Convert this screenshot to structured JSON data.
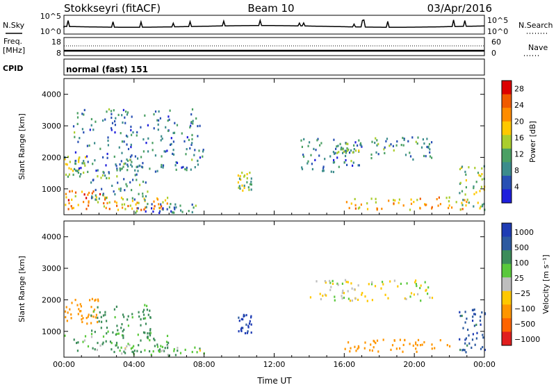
{
  "header": {
    "station": "Stokkseyri (fitACF)",
    "beam": "Beam 10",
    "date": "03/Apr/2016"
  },
  "top_strips": {
    "nsky_label": "N.Sky",
    "nsky_ticks_left": [
      "10^5",
      "10^0"
    ],
    "nsky_ticks_right": [
      "10^5",
      "10^0"
    ],
    "nsearch_label": "N.Search",
    "freq_label_line1": "Freq.",
    "freq_label_line2": "[MHz]",
    "freq_ticks": [
      "18",
      "8"
    ],
    "nave_ticks": [
      "60",
      "0"
    ],
    "nave_label": "Nave",
    "cpid_label": "CPID",
    "cpid_value": "normal (fast) 151"
  },
  "colors": {
    "power": [
      "#1e1edc",
      "#2850b4",
      "#3c8c8c",
      "#4ba064",
      "#aacd2d",
      "#ffc800",
      "#ff8c00",
      "#f05a00",
      "#dc0000"
    ],
    "velocity": [
      "#1e3cb4",
      "#2d5aa0",
      "#3c8c5a",
      "#5ac83c",
      "#bebebe",
      "#ffc800",
      "#ff9600",
      "#ff6400",
      "#e11e1e"
    ]
  },
  "chart_data": [
    {
      "type": "heatmap",
      "panel": "power",
      "xlabel": "Time UT",
      "ylabel": "Slant Range [km]",
      "x_ticks": [
        "00:00",
        "04:00",
        "08:00",
        "12:00",
        "16:00",
        "20:00",
        "00:00"
      ],
      "xlim_hours": [
        0,
        24
      ],
      "y_ticks": [
        1000,
        2000,
        3000,
        4000
      ],
      "ylim_km": [
        180,
        4500
      ],
      "colorbar_label": "Power [dB]",
      "colorbar_ticks": [
        4,
        8,
        12,
        16,
        20,
        24,
        28
      ],
      "clim": [
        0,
        30
      ],
      "regions": [
        {
          "t0": 0.0,
          "t1": 2.8,
          "r0": 300,
          "r1": 900,
          "level": 22
        },
        {
          "t0": 2.5,
          "t1": 6.0,
          "r0": 300,
          "r1": 700,
          "level": 20
        },
        {
          "t0": 0.0,
          "t1": 1.2,
          "r0": 1200,
          "r1": 2000,
          "level": 14
        },
        {
          "t0": 1.5,
          "t1": 5.0,
          "r0": 600,
          "r1": 1800,
          "level": 10
        },
        {
          "t0": 4.0,
          "t1": 7.5,
          "r0": 200,
          "r1": 500,
          "level": 8
        },
        {
          "t0": 0.5,
          "t1": 8.0,
          "r0": 1500,
          "r1": 3500,
          "level": 8
        },
        {
          "t0": 9.9,
          "t1": 10.7,
          "r0": 900,
          "r1": 1500,
          "level": 14
        },
        {
          "t0": 13.5,
          "t1": 17.0,
          "r0": 1500,
          "r1": 2600,
          "level": 8
        },
        {
          "t0": 15.5,
          "t1": 16.8,
          "r0": 2100,
          "r1": 2400,
          "level": 12
        },
        {
          "t0": 16.0,
          "t1": 23.0,
          "r0": 300,
          "r1": 700,
          "level": 20
        },
        {
          "t0": 17.5,
          "t1": 21.0,
          "r0": 1900,
          "r1": 2600,
          "level": 10
        },
        {
          "t0": 22.5,
          "t1": 24.0,
          "r0": 300,
          "r1": 1700,
          "level": 14
        }
      ]
    },
    {
      "type": "heatmap",
      "panel": "velocity",
      "xlabel": "Time UT",
      "ylabel": "Slant Range [km]",
      "x_ticks": [
        "00:00",
        "04:00",
        "08:00",
        "12:00",
        "16:00",
        "20:00",
        "00:00"
      ],
      "xlim_hours": [
        0,
        24
      ],
      "y_ticks": [
        1000,
        2000,
        3000,
        4000
      ],
      "ylim_km": [
        180,
        4500
      ],
      "colorbar_label": "Velocity [m s⁻¹]",
      "colorbar_ticks": [
        "1000",
        "500",
        "100",
        "25",
        "−25",
        "−100",
        "−500",
        "−1000"
      ],
      "clim": [
        -1000,
        1000
      ],
      "regions": [
        {
          "t0": 0.0,
          "t1": 6.0,
          "r0": 300,
          "r1": 900,
          "level": 100
        },
        {
          "t0": 0.0,
          "t1": 2.0,
          "r0": 1200,
          "r1": 2000,
          "level": -300
        },
        {
          "t0": 1.5,
          "t1": 5.0,
          "r0": 900,
          "r1": 1800,
          "level": 150
        },
        {
          "t0": 3.0,
          "t1": 8.0,
          "r0": 200,
          "r1": 500,
          "level": 60
        },
        {
          "t0": 9.9,
          "t1": 10.7,
          "r0": 900,
          "r1": 1500,
          "level": 600
        },
        {
          "t0": 14.0,
          "t1": 21.0,
          "r0": 1900,
          "r1": 2600,
          "level": 0
        },
        {
          "t0": 16.0,
          "t1": 22.0,
          "r0": 300,
          "r1": 700,
          "level": -250
        },
        {
          "t0": 22.5,
          "t1": 24.0,
          "r0": 300,
          "r1": 1700,
          "level": 400
        }
      ]
    }
  ]
}
